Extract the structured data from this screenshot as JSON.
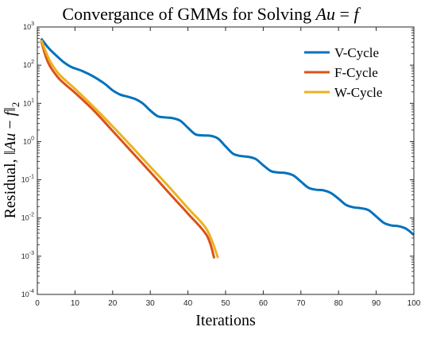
{
  "chart_data": {
    "type": "line",
    "title": "Convergance of GMMs for Solving Au = f",
    "title_parts": {
      "text": "Convergance of GMMs for Solving ",
      "var_a": "A",
      "var_u": "u",
      "eq": " = ",
      "var_f": "f"
    },
    "xlabel": "Iterations",
    "ylabel": "Residual, ||Au − f||2",
    "ylabel_parts": {
      "text": "Residual, ",
      "norm_open": "‖",
      "var_a": "A",
      "var_u": "u",
      "minus": " − ",
      "var_f": "f",
      "norm_close": "‖",
      "sub": "2"
    },
    "xlim": [
      0,
      100
    ],
    "ylim": [
      0.0001,
      1000
    ],
    "yscale": "log",
    "xticks": [
      0,
      10,
      20,
      30,
      40,
      50,
      60,
      70,
      80,
      90,
      100
    ],
    "yticks": [
      {
        "value": 0.0001,
        "base": "10",
        "exp": "-4"
      },
      {
        "value": 0.001,
        "base": "10",
        "exp": "-3"
      },
      {
        "value": 0.01,
        "base": "10",
        "exp": "-2"
      },
      {
        "value": 0.1,
        "base": "10",
        "exp": "-1"
      },
      {
        "value": 1,
        "base": "10",
        "exp": "0"
      },
      {
        "value": 10,
        "base": "10",
        "exp": "1"
      },
      {
        "value": 100,
        "base": "10",
        "exp": "2"
      },
      {
        "value": 1000,
        "base": "10",
        "exp": "3"
      }
    ],
    "grid": false,
    "legend_position": "top-right",
    "series": [
      {
        "name": "V-Cycle",
        "color": "#0072BD",
        "x": [
          1,
          3,
          5,
          7,
          9,
          12,
          15,
          18,
          20,
          22,
          24,
          26,
          28,
          30,
          32,
          34,
          36,
          38,
          40,
          42,
          44,
          46,
          48,
          50,
          52,
          54,
          56,
          58,
          60,
          62,
          64,
          66,
          68,
          70,
          72,
          74,
          76,
          78,
          80,
          82,
          84,
          86,
          88,
          90,
          92,
          94,
          96,
          98,
          100
        ],
        "y": [
          500,
          280,
          180,
          120,
          90,
          70,
          50,
          32,
          22,
          17,
          15,
          13,
          10,
          6.5,
          4.6,
          4.3,
          4.1,
          3.5,
          2.3,
          1.55,
          1.45,
          1.42,
          1.2,
          0.75,
          0.48,
          0.42,
          0.4,
          0.35,
          0.24,
          0.17,
          0.155,
          0.15,
          0.13,
          0.09,
          0.062,
          0.055,
          0.053,
          0.045,
          0.032,
          0.022,
          0.019,
          0.018,
          0.016,
          0.011,
          0.0075,
          0.0064,
          0.0061,
          0.0052,
          0.0036
        ]
      },
      {
        "name": "F-Cycle",
        "color": "#D95319",
        "x": [
          1,
          2,
          3,
          4,
          5,
          6,
          8,
          10,
          15,
          20,
          25,
          30,
          35,
          40,
          45,
          47
        ],
        "y": [
          440,
          200,
          110,
          75,
          55,
          42,
          28,
          19,
          6.5,
          1.9,
          0.55,
          0.16,
          0.045,
          0.013,
          0.0035,
          0.00088
        ]
      },
      {
        "name": "W-Cycle",
        "color": "#EDB120",
        "x": [
          1,
          2,
          3,
          4,
          5,
          6,
          8,
          10,
          15,
          20,
          25,
          30,
          35,
          40,
          45,
          48
        ],
        "y": [
          460,
          260,
          150,
          100,
          72,
          55,
          36,
          24,
          8,
          2.5,
          0.75,
          0.22,
          0.065,
          0.018,
          0.005,
          0.0009
        ]
      }
    ]
  }
}
